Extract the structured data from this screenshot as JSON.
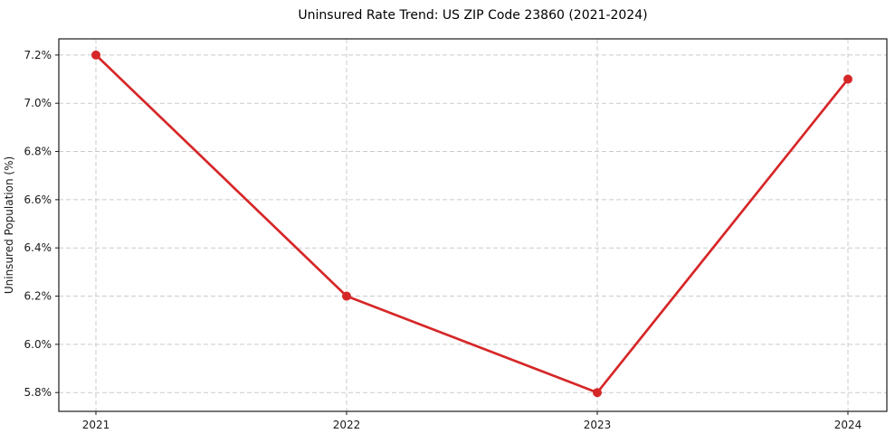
{
  "chart_data": {
    "type": "line",
    "title": "Uninsured Rate Trend: US ZIP Code 23860 (2021-2024)",
    "xlabel": "",
    "ylabel": "Uninsured Population (%)",
    "x": [
      "2021",
      "2022",
      "2023",
      "2024"
    ],
    "series": [
      {
        "name": "uninsured-rate",
        "values": [
          7.2,
          6.2,
          5.8,
          7.1
        ]
      }
    ],
    "yticks": [
      5.8,
      6.0,
      6.2,
      6.4,
      6.6,
      6.8,
      7.0,
      7.2
    ],
    "ytick_labels": [
      "5.8%",
      "6.0%",
      "6.2%",
      "6.4%",
      "6.6%",
      "6.8%",
      "7.0%",
      "7.2%"
    ],
    "xtick_labels": [
      "2021",
      "2022",
      "2023",
      "2024"
    ],
    "ylim": [
      5.722,
      7.267
    ],
    "grid": true,
    "legend": false,
    "line_color": "#d62728",
    "marker_color": "#d62728",
    "grid_color": "#cbcbcb",
    "spine_color": "#1a1a1a",
    "tick_label_color": "#1a1a1a",
    "background": "#ffffff"
  }
}
